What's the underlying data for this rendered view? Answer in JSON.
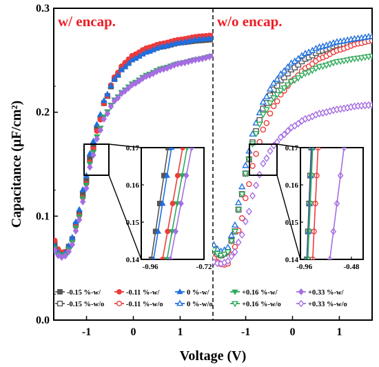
{
  "chart_data": {
    "type": "line",
    "xlabel": "Voltage (V)",
    "ylabel": "Capacitance (μF/cm²)",
    "xlim": [
      -1.7,
      1.7
    ],
    "ylim": [
      0.0,
      0.3
    ],
    "yticks": [
      "0.0",
      "0.1",
      "0.2",
      "0.3"
    ],
    "xticks": [
      "-1",
      "0",
      "1"
    ],
    "panels": [
      {
        "title": "w/ encap.",
        "series": [
          {
            "name": "-0.15 %-w/",
            "color": "#555555",
            "marker": "square",
            "filled": true,
            "x": [
              -1.7,
              -1.6,
              -1.5,
              -1.35,
              -1.2,
              -1.05,
              -0.9,
              -0.75,
              -0.6,
              -0.4,
              -0.2,
              0.0,
              0.3,
              0.6,
              1.0,
              1.4,
              1.7
            ],
            "y": [
              0.075,
              0.066,
              0.063,
              0.072,
              0.095,
              0.125,
              0.16,
              0.188,
              0.212,
              0.232,
              0.244,
              0.252,
              0.259,
              0.263,
              0.267,
              0.269,
              0.27
            ]
          },
          {
            "name": "-0.11 %-w/",
            "color": "#ee3b3b",
            "marker": "circle",
            "filled": true,
            "x": [
              -1.7,
              -1.6,
              -1.5,
              -1.35,
              -1.2,
              -1.05,
              -0.9,
              -0.75,
              -0.6,
              -0.4,
              -0.2,
              0.0,
              0.3,
              0.6,
              1.0,
              1.4,
              1.7
            ],
            "y": [
              0.078,
              0.068,
              0.064,
              0.071,
              0.093,
              0.122,
              0.157,
              0.186,
              0.212,
              0.234,
              0.247,
              0.255,
              0.262,
              0.266,
              0.27,
              0.273,
              0.274
            ]
          },
          {
            "name": "0 %-w/",
            "color": "#1f6fe0",
            "marker": "triangle-up",
            "filled": true,
            "x": [
              -1.7,
              -1.6,
              -1.5,
              -1.35,
              -1.2,
              -1.05,
              -0.9,
              -0.75,
              -0.6,
              -0.4,
              -0.2,
              0.0,
              0.3,
              0.6,
              1.0,
              1.4,
              1.7
            ],
            "y": [
              0.072,
              0.065,
              0.062,
              0.073,
              0.098,
              0.13,
              0.165,
              0.192,
              0.214,
              0.232,
              0.243,
              0.251,
              0.258,
              0.263,
              0.267,
              0.27,
              0.271
            ]
          },
          {
            "name": "+0.16 %-w/",
            "color": "#2eaa5a",
            "marker": "triangle-down",
            "filled": true,
            "x": [
              -1.7,
              -1.6,
              -1.5,
              -1.35,
              -1.2,
              -1.05,
              -0.9,
              -0.75,
              -0.6,
              -0.4,
              -0.2,
              0.0,
              0.3,
              0.6,
              1.0,
              1.4,
              1.7
            ],
            "y": [
              0.07,
              0.063,
              0.061,
              0.069,
              0.092,
              0.121,
              0.155,
              0.18,
              0.198,
              0.212,
              0.221,
              0.228,
              0.236,
              0.242,
              0.247,
              0.251,
              0.254
            ]
          },
          {
            "name": "+0.33 %-w/",
            "color": "#a56de2",
            "marker": "diamond",
            "filled": true,
            "x": [
              -1.7,
              -1.6,
              -1.5,
              -1.35,
              -1.2,
              -1.05,
              -0.9,
              -0.75,
              -0.6,
              -0.4,
              -0.2,
              0.0,
              0.3,
              0.6,
              1.0,
              1.4,
              1.7
            ],
            "y": [
              0.068,
              0.062,
              0.06,
              0.067,
              0.089,
              0.118,
              0.152,
              0.178,
              0.196,
              0.211,
              0.22,
              0.227,
              0.235,
              0.241,
              0.247,
              0.251,
              0.254
            ]
          }
        ],
        "inset": {
          "xlim": [
            -1.0,
            -0.72
          ],
          "ylim": [
            0.14,
            0.17
          ],
          "xticks": [
            "-0.96",
            "-0.72"
          ],
          "yticks": [
            "0.14",
            "0.15",
            "0.16",
            "0.17"
          ],
          "series_x": [
            [
              -0.955,
              -0.88
            ],
            [
              -0.905,
              -0.815
            ],
            [
              -0.945,
              -0.865
            ],
            [
              -0.885,
              -0.795
            ],
            [
              -0.87,
              -0.775
            ]
          ],
          "series_y": [
            [
              0.14,
              0.17
            ],
            [
              0.14,
              0.17
            ],
            [
              0.14,
              0.17
            ],
            [
              0.14,
              0.17
            ],
            [
              0.14,
              0.17
            ]
          ]
        }
      },
      {
        "title": "w/o encap.",
        "series": [
          {
            "name": "-0.15 %-w/o",
            "color": "#555555",
            "marker": "square",
            "filled": false,
            "x": [
              -1.7,
              -1.55,
              -1.4,
              -1.25,
              -1.1,
              -0.95,
              -0.8,
              -0.6,
              -0.4,
              -0.2,
              0.0,
              0.3,
              0.6,
              1.0,
              1.4,
              1.7
            ],
            "y": [
              0.066,
              0.062,
              0.065,
              0.082,
              0.118,
              0.152,
              0.18,
              0.206,
              0.222,
              0.233,
              0.242,
              0.252,
              0.259,
              0.265,
              0.269,
              0.271
            ]
          },
          {
            "name": "-0.11 %-w/o",
            "color": "#ee3b3b",
            "marker": "circle",
            "filled": false,
            "x": [
              -1.7,
              -1.55,
              -1.4,
              -1.25,
              -1.1,
              -0.95,
              -0.8,
              -0.6,
              -0.4,
              -0.2,
              0.0,
              0.3,
              0.6,
              1.0,
              1.4,
              1.7
            ],
            "y": [
              0.06,
              0.054,
              0.053,
              0.068,
              0.095,
              0.128,
              0.158,
              0.186,
              0.206,
              0.22,
              0.231,
              0.243,
              0.252,
              0.26,
              0.266,
              0.269
            ]
          },
          {
            "name": "0 %-w/o",
            "color": "#1f6fe0",
            "marker": "triangle-up",
            "filled": false,
            "x": [
              -1.7,
              -1.55,
              -1.4,
              -1.25,
              -1.1,
              -0.95,
              -0.8,
              -0.6,
              -0.4,
              -0.2,
              0.0,
              0.3,
              0.6,
              1.0,
              1.4,
              1.7
            ],
            "y": [
              0.073,
              0.066,
              0.068,
              0.088,
              0.125,
              0.16,
              0.188,
              0.212,
              0.228,
              0.239,
              0.248,
              0.257,
              0.263,
              0.268,
              0.271,
              0.273
            ]
          },
          {
            "name": "+0.16 %-w/o",
            "color": "#2eaa5a",
            "marker": "triangle-down",
            "filled": false,
            "x": [
              -1.7,
              -1.55,
              -1.4,
              -1.25,
              -1.1,
              -0.95,
              -0.8,
              -0.6,
              -0.4,
              -0.2,
              0.0,
              0.3,
              0.6,
              1.0,
              1.4,
              1.7
            ],
            "y": [
              0.068,
              0.062,
              0.064,
              0.082,
              0.118,
              0.152,
              0.178,
              0.2,
              0.214,
              0.223,
              0.23,
              0.238,
              0.244,
              0.249,
              0.252,
              0.254
            ]
          },
          {
            "name": "+0.33 %-w/o",
            "color": "#a56de2",
            "marker": "diamond",
            "filled": false,
            "x": [
              -1.7,
              -1.55,
              -1.4,
              -1.25,
              -1.1,
              -0.95,
              -0.8,
              -0.6,
              -0.4,
              -0.2,
              0.0,
              0.3,
              0.6,
              1.0,
              1.4,
              1.7
            ],
            "y": [
              0.056,
              0.054,
              0.056,
              0.064,
              0.08,
              0.102,
              0.128,
              0.153,
              0.168,
              0.178,
              0.186,
              0.194,
              0.199,
              0.203,
              0.206,
              0.207
            ]
          }
        ],
        "inset": {
          "xlim": [
            -1.0,
            -0.36
          ],
          "ylim": [
            0.14,
            0.17
          ],
          "xticks": [
            "-0.96",
            "-0.48"
          ],
          "yticks": [
            "0.14",
            "0.15",
            "0.16",
            "0.17"
          ],
          "series_x": [
            [
              -0.935,
              -0.89
            ],
            [
              -0.875,
              -0.82
            ],
            [
              -0.93,
              -0.88
            ],
            [
              -0.925,
              -0.875
            ],
            [
              -0.7,
              -0.555
            ]
          ],
          "series_y": [
            [
              0.14,
              0.17
            ],
            [
              0.14,
              0.17
            ],
            [
              0.14,
              0.17
            ],
            [
              0.14,
              0.17
            ],
            [
              0.14,
              0.17
            ]
          ]
        }
      }
    ],
    "legend": {
      "placement": "bottom",
      "rows": [
        [
          "-0.15 %-w/",
          "-0.11 %-w/",
          "0 %-w/",
          "+0.16 %-w/",
          "+0.33 %-w/"
        ],
        [
          "-0.15 %-w/o",
          "-0.11 %-w/o",
          "0 %-w/o",
          "+0.16 %-w/o",
          "+0.33 %-w/o"
        ]
      ]
    },
    "grid": false
  }
}
